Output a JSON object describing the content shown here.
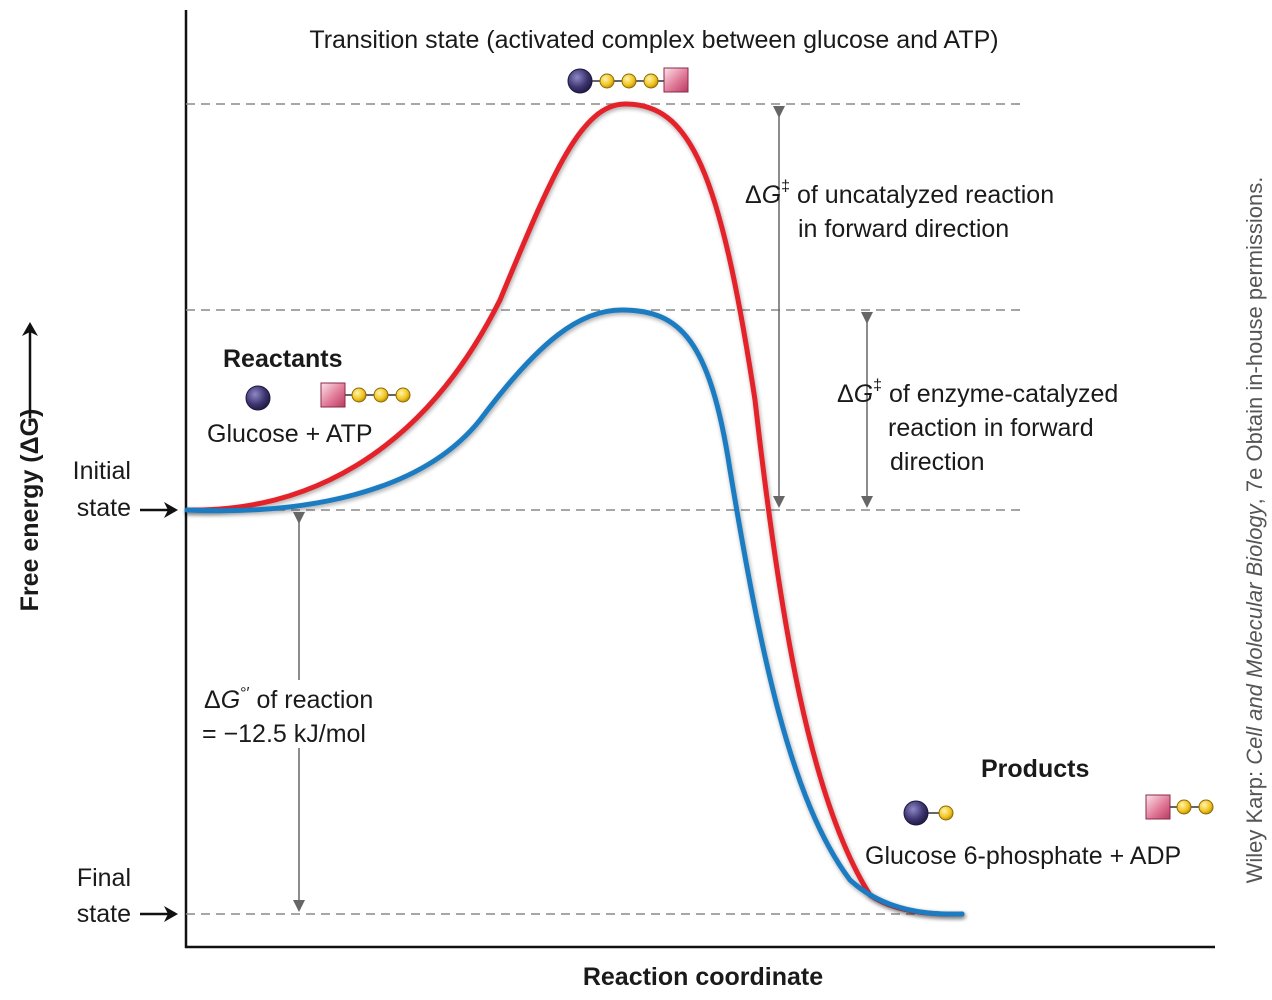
{
  "title": "Transition state (activated complex between glucose and ATP)",
  "axes": {
    "y_label": "Free energy (ΔG)",
    "x_label": "Reaction coordinate"
  },
  "states": {
    "initial_line1": "Initial",
    "initial_line2": "state",
    "final_line1": "Final",
    "final_line2": "state"
  },
  "reactants": {
    "heading": "Reactants",
    "label": "Glucose + ATP"
  },
  "products": {
    "heading": "Products",
    "label": "Glucose 6-phosphate + ADP"
  },
  "uncatalyzed": {
    "line1_rest": " of uncatalyzed reaction",
    "line2": "in forward direction"
  },
  "catalyzed": {
    "line1_rest": " of enzyme-catalyzed",
    "line2": "reaction in forward",
    "line3": "direction"
  },
  "reaction_dg": {
    "line1_rest": " of reaction",
    "line2": "= −12.5 kJ/mol"
  },
  "symbols": {
    "delta": "Δ",
    "g": "G",
    "dagger": "‡",
    "prime": "°′"
  },
  "credit": {
    "prefix": "Wiley Karp: ",
    "book": "Cell and Molecular Biology",
    "suffix": ", 7e Obtain in-house permissions."
  },
  "colors": {
    "uncatalyzed_curve": "#e3202b",
    "catalyzed_curve": "#1b7bc2",
    "glucose": "#3d3670",
    "phosphate": "#f2c31d",
    "adenosine": "#d8587a"
  }
}
